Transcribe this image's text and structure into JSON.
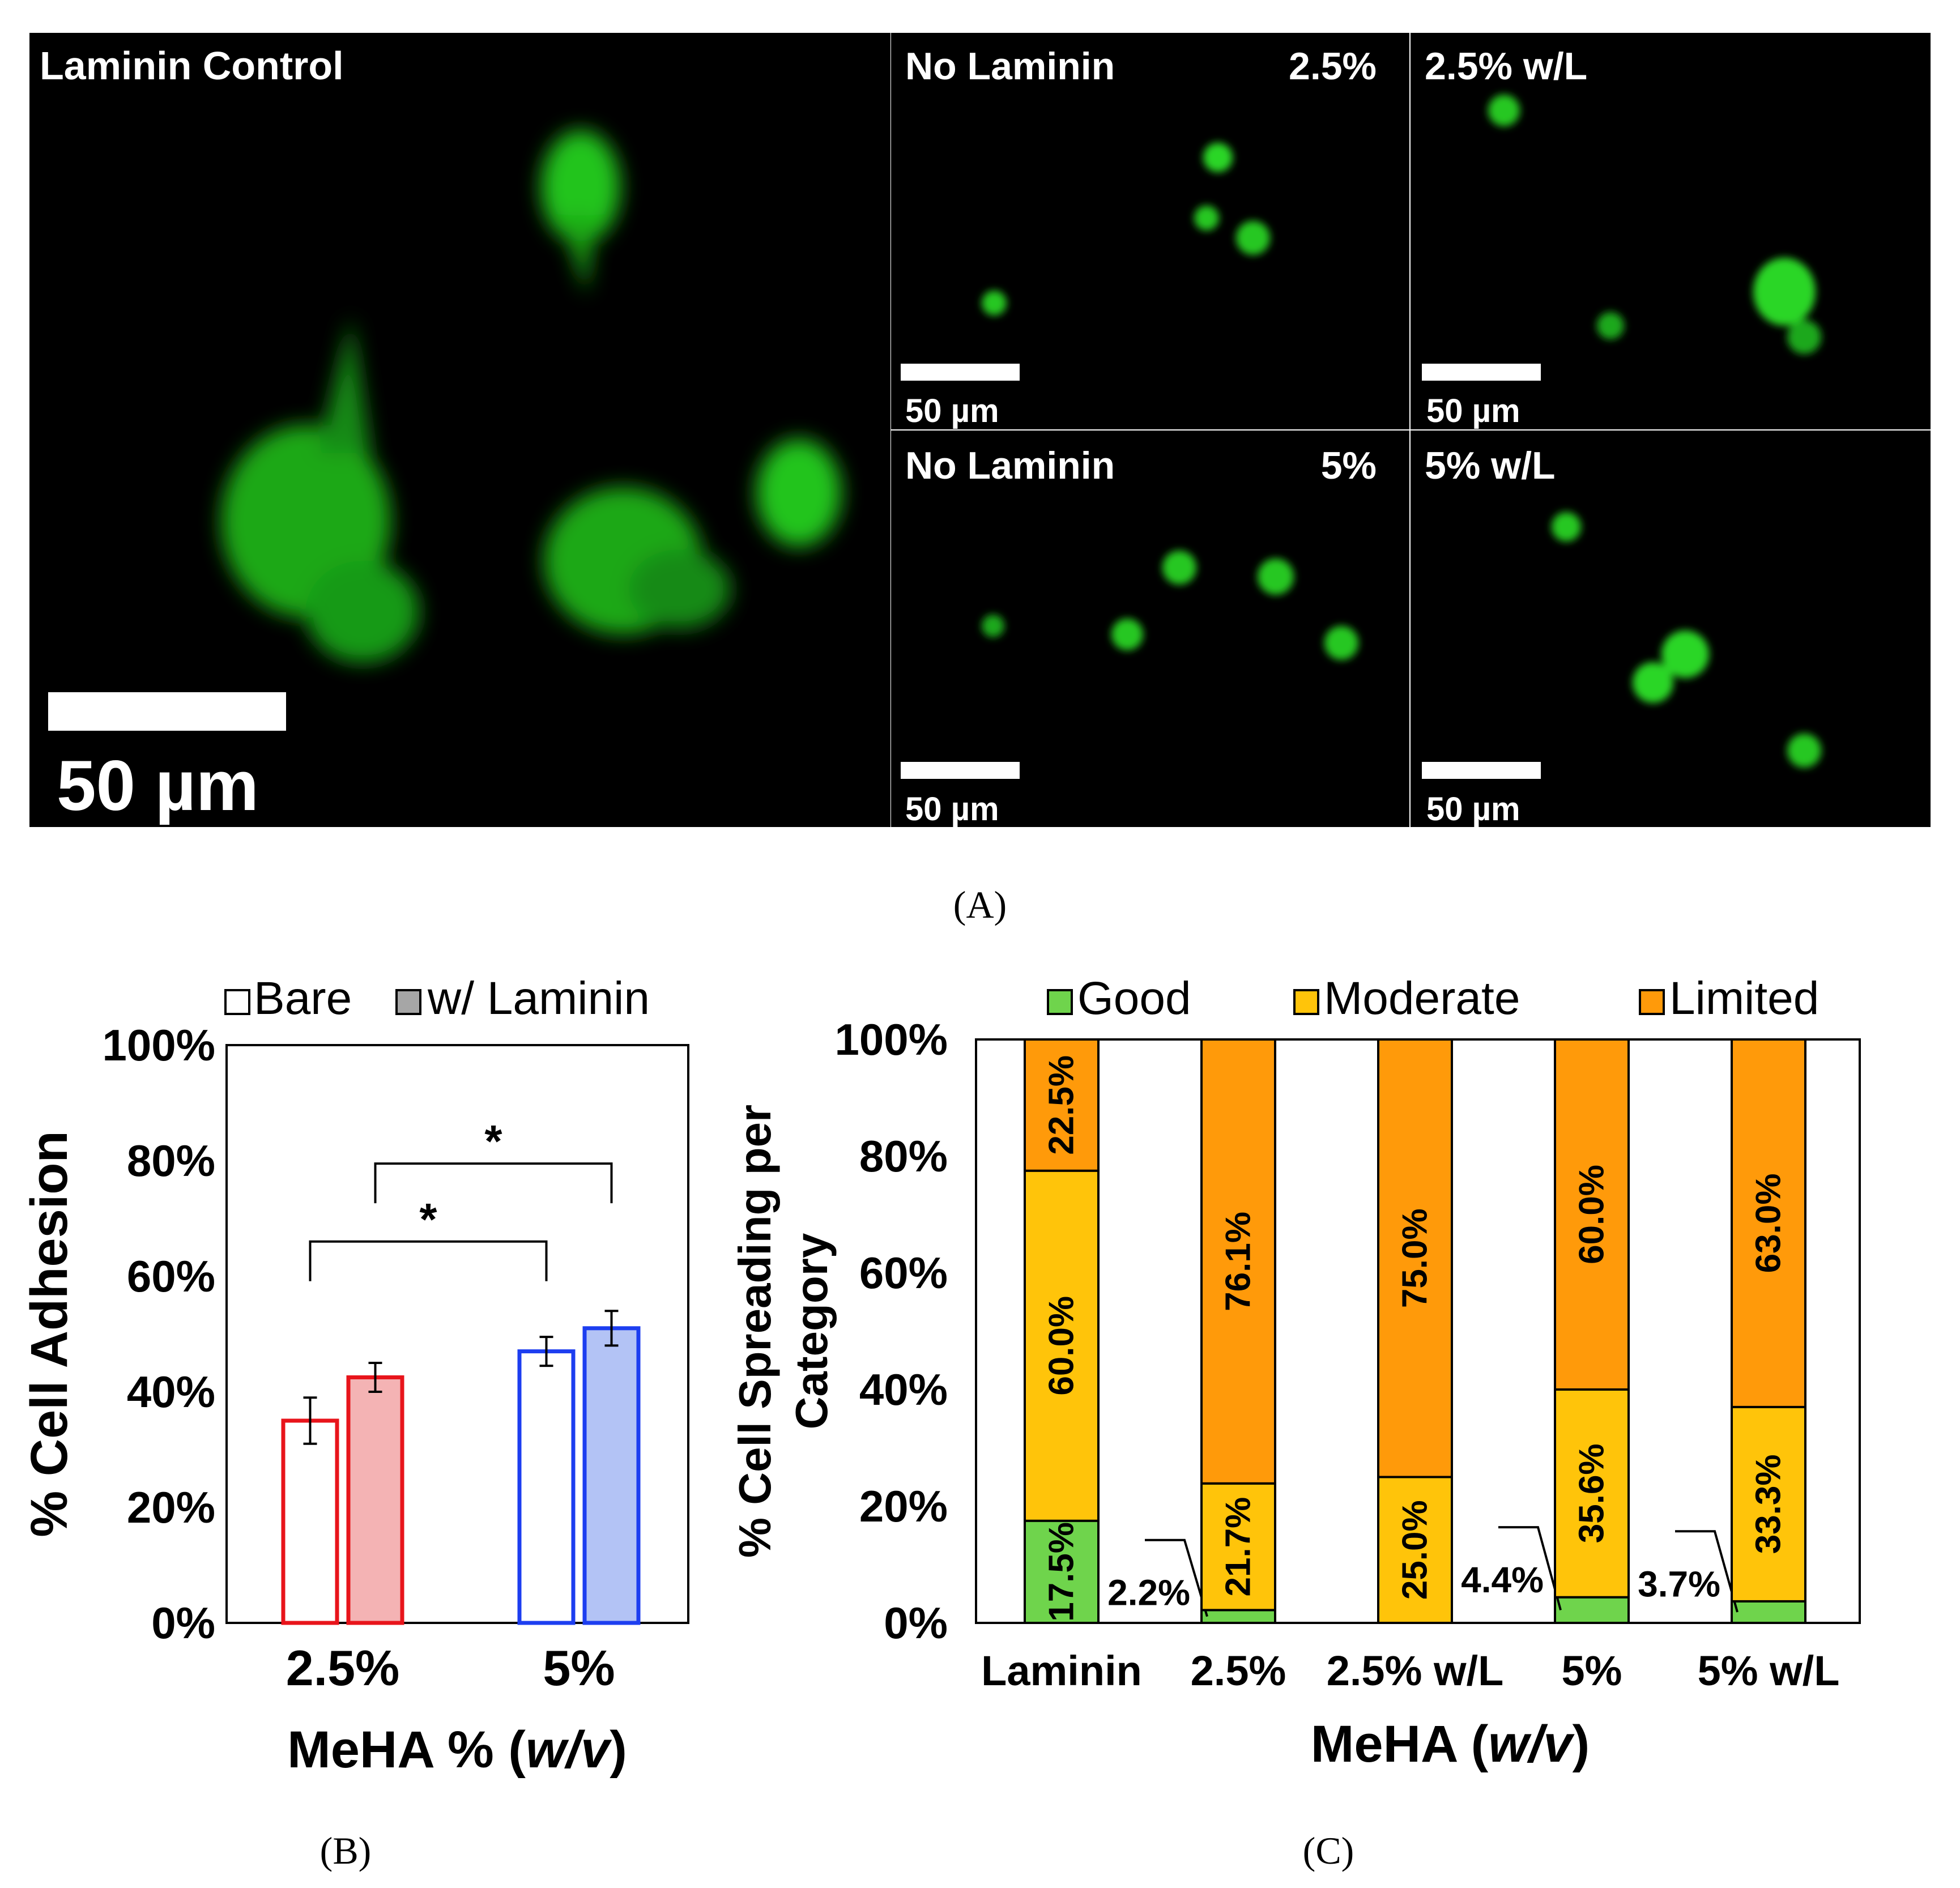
{
  "panel_a": {
    "caption": "(A)",
    "images": [
      {
        "label_left": "Laminin Control",
        "label_right": "",
        "scale_bar": "50 µm"
      },
      {
        "label_left": "No Laminin",
        "label_right": "2.5%",
        "scale_bar": "50 µm"
      },
      {
        "label_left": "2.5% w/L",
        "label_right": "",
        "scale_bar": "50 µm"
      },
      {
        "label_left": "No Laminin",
        "label_right": "5%",
        "scale_bar": "50 µm"
      },
      {
        "label_left": "5% w/L",
        "label_right": "",
        "scale_bar": "50 µm"
      }
    ]
  },
  "panel_b": {
    "caption": "(B)",
    "legend": {
      "bare": "Bare",
      "laminin": "w/ Laminin"
    },
    "significance_marker": "*",
    "xlabel_main": "MeHA % (",
    "xlabel_italic": "w/v",
    "xlabel_close": ")",
    "colors": {
      "red_edge": "#e8141b",
      "red_fill": "#f4b3b4",
      "blue_edge": "#1d3ef0",
      "blue_fill": "#b3c3f5",
      "gray_fill": "#a6a6a6"
    }
  },
  "panel_c": {
    "caption": "(C)",
    "xlabel_main": "MeHA (",
    "xlabel_italic": "w/v",
    "xlabel_close": ")",
    "colors": {
      "Good": "#6fd44c",
      "Moderate": "#ffc40a",
      "Limited": "#ff9a0a"
    }
  },
  "chart_data": [
    {
      "type": "bar",
      "ylabel": "% Cell Adhesion",
      "categories": [
        "2.5%",
        "5%"
      ],
      "series": [
        {
          "name": "Bare",
          "values": [
            35,
            47
          ],
          "errors": [
            4,
            2.5
          ]
        },
        {
          "name": "w/ Laminin",
          "values": [
            42.5,
            51
          ],
          "errors": [
            2.5,
            3
          ]
        }
      ],
      "ylim": [
        0,
        100
      ],
      "yticks": [
        "0%",
        "20%",
        "40%",
        "60%",
        "80%",
        "100%"
      ],
      "significance": [
        {
          "between": [
            "2.5% Bare",
            "5% Bare"
          ],
          "marker": "*"
        },
        {
          "between": [
            "2.5% w/ Laminin",
            "5% w/ Laminin"
          ],
          "marker": "*"
        }
      ]
    },
    {
      "type": "bar",
      "stacked": true,
      "ylabel_line1": "% Cell Spreading per",
      "ylabel_line2": "Category",
      "categories": [
        "Laminin",
        "2.5%",
        "2.5% w/L",
        "5%",
        "5% w/L"
      ],
      "series": [
        {
          "name": "Good",
          "values": [
            17.5,
            2.2,
            0,
            4.4,
            3.7
          ],
          "labels": [
            "17.5%",
            "2.2%",
            "",
            "4.4%",
            "3.7%"
          ]
        },
        {
          "name": "Moderate",
          "values": [
            60.0,
            21.7,
            25.0,
            35.6,
            33.3
          ],
          "labels": [
            "60.0%",
            "21.7%",
            "25.0%",
            "35.6%",
            "33.3%"
          ]
        },
        {
          "name": "Limited",
          "values": [
            22.5,
            76.1,
            75.0,
            60.0,
            63.0
          ],
          "labels": [
            "22.5%",
            "76.1%",
            "75.0%",
            "60.0%",
            "63.0%"
          ]
        }
      ],
      "ylim": [
        0,
        100
      ],
      "yticks": [
        "0%",
        "20%",
        "40%",
        "60%",
        "80%",
        "100%"
      ],
      "legend_position": "top"
    }
  ]
}
